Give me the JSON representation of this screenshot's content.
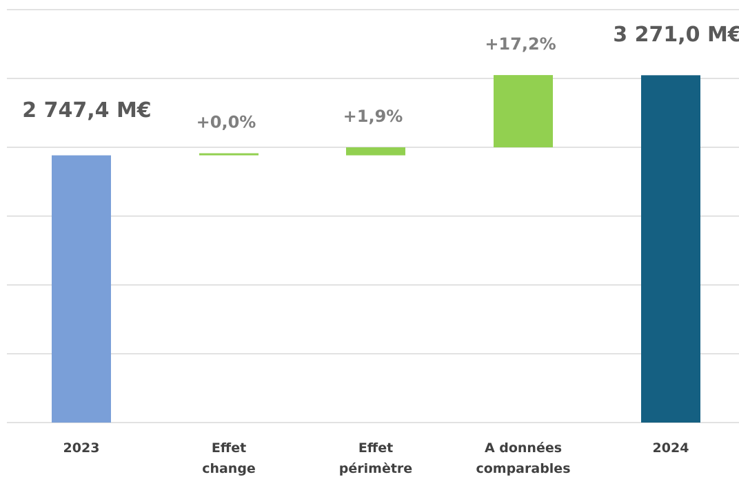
{
  "chart_data": {
    "type": "waterfall",
    "categories": [
      "2023",
      "Effet change",
      "Effet périmètre",
      "A données comparables",
      "2024"
    ],
    "values": [
      2747.4,
      null,
      null,
      null,
      3271.0
    ],
    "value_labels": [
      "2 747,4 M€",
      null,
      null,
      null,
      "3 271,0 M€"
    ],
    "changes": [
      null,
      0.0,
      1.9,
      17.2,
      null
    ],
    "change_labels": [
      null,
      "+0,0%",
      "+1,9%",
      "+17,2%",
      null
    ],
    "colors": [
      "#7a9fd8",
      "#92d050",
      "#92d050",
      "#92d050",
      "#156082"
    ],
    "ylim": [
      1000,
      3700
    ],
    "yticks": [
      1000,
      1450,
      1900,
      2350,
      2800,
      3250,
      3700
    ],
    "grid": true
  }
}
